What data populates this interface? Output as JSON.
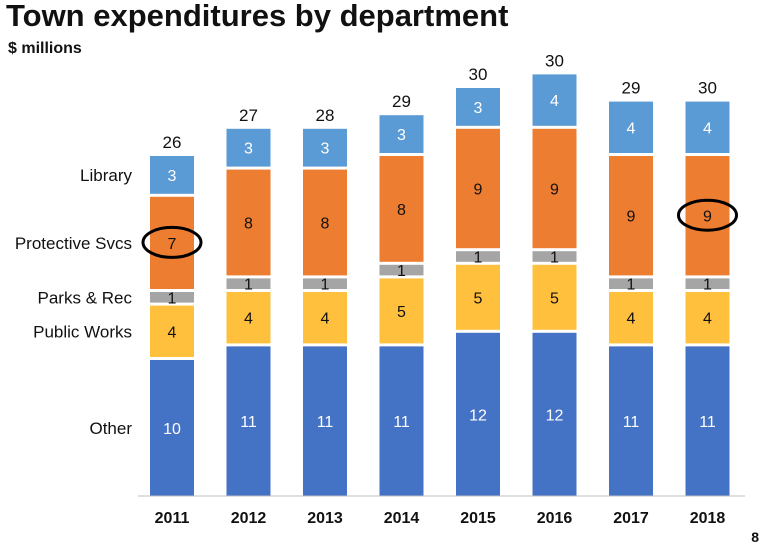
{
  "slide": {
    "title": "Town expenditures by department",
    "subtitle": "$ millions",
    "page_number": "8"
  },
  "chart_data": {
    "type": "bar",
    "stacked": true,
    "title": "Town expenditures by department",
    "ylabel": "$ millions",
    "xlabel": "",
    "categories": [
      "2011",
      "2012",
      "2013",
      "2014",
      "2015",
      "2016",
      "2017",
      "2018"
    ],
    "totals": [
      26,
      27,
      28,
      29,
      30,
      30,
      29,
      30
    ],
    "series": [
      {
        "name": "Other",
        "color": "#4472C4",
        "label_color": "#ffffff",
        "values": [
          10,
          11,
          11,
          11,
          12,
          12,
          11,
          11
        ]
      },
      {
        "name": "Public Works",
        "color": "#FFC03D",
        "label_color": "#111111",
        "values": [
          4,
          4,
          4,
          5,
          5,
          5,
          4,
          4
        ]
      },
      {
        "name": "Parks & Rec",
        "color": "#A5A5A5",
        "label_color": "#111111",
        "values": [
          1,
          1,
          1,
          1,
          1,
          1,
          1,
          1
        ]
      },
      {
        "name": "Protective Svcs",
        "color": "#ED7D31",
        "label_color": "#111111",
        "values": [
          7,
          8,
          8,
          8,
          9,
          9,
          9,
          9
        ]
      },
      {
        "name": "Library",
        "color": "#5B9BD5",
        "label_color": "#ffffff",
        "values": [
          3,
          3,
          3,
          3,
          3,
          4,
          4,
          4
        ]
      }
    ],
    "highlighted": [
      {
        "series": "Protective Svcs",
        "category": "2011"
      },
      {
        "series": "Protective Svcs",
        "category": "2018"
      }
    ],
    "grid": false,
    "legend": "left, labels aligned with segments"
  }
}
